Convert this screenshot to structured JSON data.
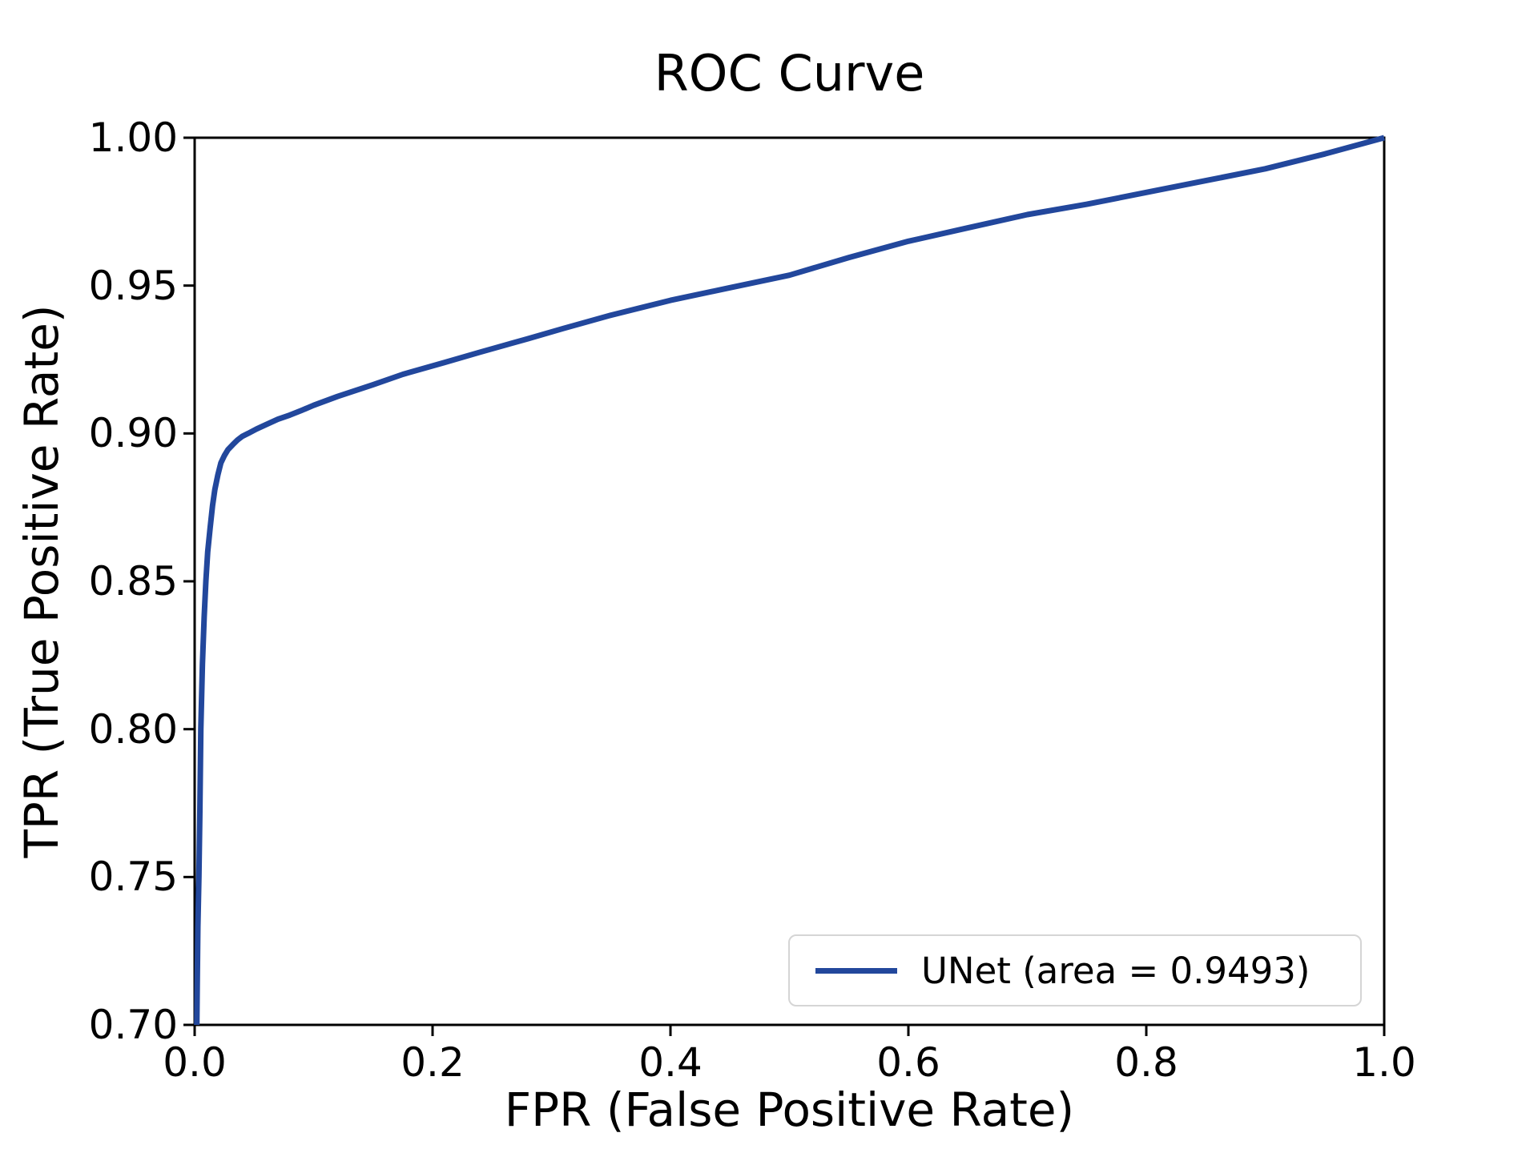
{
  "chart_data": {
    "type": "line",
    "title": "ROC Curve",
    "xlabel": "FPR (False Positive Rate)",
    "ylabel": "TPR (True Positive Rate)",
    "xlim": [
      0.0,
      1.0
    ],
    "ylim": [
      0.7,
      1.0
    ],
    "x_ticks": [
      "0.0",
      "0.2",
      "0.4",
      "0.6",
      "0.8",
      "1.0"
    ],
    "x_tick_values": [
      0.0,
      0.2,
      0.4,
      0.6,
      0.8,
      1.0
    ],
    "y_ticks": [
      "0.70",
      "0.75",
      "0.80",
      "0.85",
      "0.90",
      "0.95",
      "1.00"
    ],
    "y_tick_values": [
      0.7,
      0.75,
      0.8,
      0.85,
      0.9,
      0.95,
      1.0
    ],
    "grid": false,
    "legend_position": "lower right",
    "axis_color": "#000000",
    "series": [
      {
        "name": "UNet",
        "label": "UNet (area = 0.9493)",
        "auc": 0.9493,
        "color": "#22479c",
        "points": [
          [
            0.0018,
            0.7
          ],
          [
            0.0022,
            0.716
          ],
          [
            0.0027,
            0.733
          ],
          [
            0.0036,
            0.75
          ],
          [
            0.0044,
            0.772
          ],
          [
            0.0052,
            0.8
          ],
          [
            0.0065,
            0.822
          ],
          [
            0.008,
            0.838
          ],
          [
            0.0094,
            0.85
          ],
          [
            0.011,
            0.86
          ],
          [
            0.013,
            0.868
          ],
          [
            0.015,
            0.8755
          ],
          [
            0.017,
            0.881
          ],
          [
            0.0195,
            0.886
          ],
          [
            0.022,
            0.89
          ],
          [
            0.025,
            0.8925
          ],
          [
            0.028,
            0.8945
          ],
          [
            0.032,
            0.8962
          ],
          [
            0.036,
            0.8978
          ],
          [
            0.04,
            0.899
          ],
          [
            0.045,
            0.9
          ],
          [
            0.052,
            0.9015
          ],
          [
            0.06,
            0.903
          ],
          [
            0.07,
            0.9048
          ],
          [
            0.08,
            0.9062
          ],
          [
            0.09,
            0.9078
          ],
          [
            0.1,
            0.9095
          ],
          [
            0.12,
            0.9125
          ],
          [
            0.15,
            0.9165
          ],
          [
            0.175,
            0.92
          ],
          [
            0.21,
            0.924
          ],
          [
            0.24,
            0.9275
          ],
          [
            0.28,
            0.932
          ],
          [
            0.31,
            0.9355
          ],
          [
            0.35,
            0.94
          ],
          [
            0.4,
            0.945
          ],
          [
            0.45,
            0.9493
          ],
          [
            0.5,
            0.9535
          ],
          [
            0.55,
            0.9595
          ],
          [
            0.6,
            0.965
          ],
          [
            0.65,
            0.9695
          ],
          [
            0.7,
            0.974
          ],
          [
            0.75,
            0.9775
          ],
          [
            0.8,
            0.9815
          ],
          [
            0.85,
            0.9855
          ],
          [
            0.9,
            0.9895
          ],
          [
            0.95,
            0.9945
          ],
          [
            1.0,
            1.0
          ]
        ]
      }
    ]
  }
}
